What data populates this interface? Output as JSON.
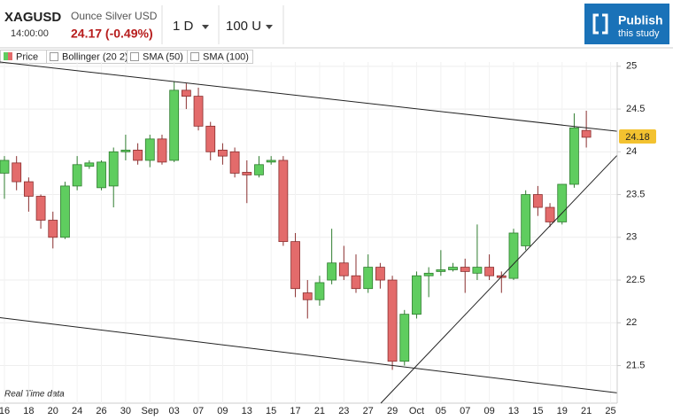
{
  "chart_data": {
    "type": "candlestick",
    "symbol": "XAGUSD",
    "description": "Ounce Silver USD",
    "time": "14:00:00",
    "price_change": "24.17 (-0.49%)",
    "interval": "1 D",
    "units": "100 U",
    "publish": {
      "title": "Publish",
      "subtitle": "this study"
    },
    "legend": [
      "Price",
      "Bollinger (20 2)",
      "SMA (50)",
      "SMA (100)"
    ],
    "note": "Real Time data",
    "categories": [
      "16",
      null,
      "18",
      null,
      "20",
      null,
      "24",
      null,
      "26",
      null,
      "30",
      null,
      "Sep",
      null,
      "03",
      null,
      "07",
      null,
      "09",
      null,
      "13",
      null,
      "15",
      null,
      "17",
      null,
      "21",
      null,
      "23",
      null,
      "27",
      null,
      "29",
      null,
      "Oct",
      null,
      "05",
      null,
      "07",
      null,
      "09",
      null,
      "13",
      null,
      "15",
      null,
      "19",
      null,
      "21",
      null,
      "25"
    ],
    "open": [
      23.75,
      23.87,
      23.65,
      23.48,
      23.2,
      23.0,
      23.6,
      23.83,
      23.58,
      23.6,
      24.0,
      24.02,
      23.9,
      24.15,
      23.9,
      24.72,
      24.65,
      24.3,
      24.02,
      24.0,
      23.76,
      23.73,
      23.88,
      23.9,
      22.95,
      22.35,
      22.27,
      22.5,
      22.7,
      22.55,
      22.4,
      22.65,
      22.5,
      21.55,
      22.1,
      22.55,
      22.6,
      22.62,
      22.65,
      22.58,
      22.65,
      22.55,
      22.52,
      22.9,
      23.5,
      23.35,
      23.18,
      23.62,
      24.25,
      null,
      null
    ],
    "high": [
      23.95,
      23.95,
      23.7,
      23.5,
      23.3,
      23.65,
      23.95,
      23.9,
      23.9,
      24.05,
      24.2,
      24.1,
      24.2,
      24.2,
      24.82,
      24.8,
      24.75,
      24.35,
      24.1,
      24.05,
      23.9,
      23.95,
      23.95,
      23.95,
      23.05,
      22.5,
      22.55,
      23.1,
      22.9,
      22.8,
      22.8,
      22.7,
      22.55,
      22.15,
      22.6,
      22.65,
      22.85,
      22.7,
      22.75,
      23.15,
      22.8,
      22.6,
      23.1,
      23.55,
      23.6,
      23.4,
      23.62,
      24.45,
      24.48,
      null,
      null
    ],
    "low": [
      23.45,
      23.55,
      23.3,
      23.1,
      22.87,
      22.98,
      23.55,
      23.8,
      23.55,
      23.35,
      23.9,
      23.85,
      23.82,
      23.85,
      23.88,
      24.5,
      24.25,
      23.9,
      23.85,
      23.7,
      23.4,
      23.7,
      23.85,
      22.9,
      22.3,
      22.05,
      22.2,
      22.45,
      22.5,
      22.35,
      22.35,
      22.4,
      21.45,
      21.5,
      22.05,
      22.3,
      22.55,
      22.6,
      22.35,
      22.5,
      22.5,
      22.35,
      22.5,
      22.85,
      23.25,
      23.12,
      23.15,
      23.58,
      24.05,
      null,
      null
    ],
    "close": [
      23.9,
      23.65,
      23.48,
      23.2,
      23.0,
      23.6,
      23.85,
      23.87,
      23.88,
      24.0,
      24.02,
      23.9,
      24.15,
      23.88,
      24.72,
      24.65,
      24.3,
      24.0,
      23.95,
      23.75,
      23.73,
      23.85,
      23.9,
      22.95,
      22.4,
      22.27,
      22.47,
      22.7,
      22.55,
      22.4,
      22.65,
      22.5,
      21.55,
      22.1,
      22.55,
      22.58,
      22.62,
      22.65,
      22.6,
      22.65,
      22.55,
      22.53,
      23.05,
      23.5,
      23.35,
      23.18,
      23.62,
      24.28,
      24.17,
      null,
      null
    ],
    "colors": {
      "up": "#5fcd5f",
      "down": "#e36b6b"
    },
    "ylim": [
      21.06,
      25.05
    ],
    "yticks": [
      21.5,
      22,
      22.5,
      23,
      23.5,
      24,
      24.5,
      25
    ],
    "grid": true,
    "last_price": 24.18,
    "trendlines": [
      {
        "x": [
          -0.37,
          50.55
        ],
        "y": [
          25.05,
          24.24
        ]
      },
      {
        "x": [
          -0.37,
          50.55
        ],
        "y": [
          22.06,
          21.18
        ]
      },
      {
        "x": [
          31.05,
          50.55
        ],
        "y": [
          21.06,
          23.96
        ]
      }
    ]
  }
}
